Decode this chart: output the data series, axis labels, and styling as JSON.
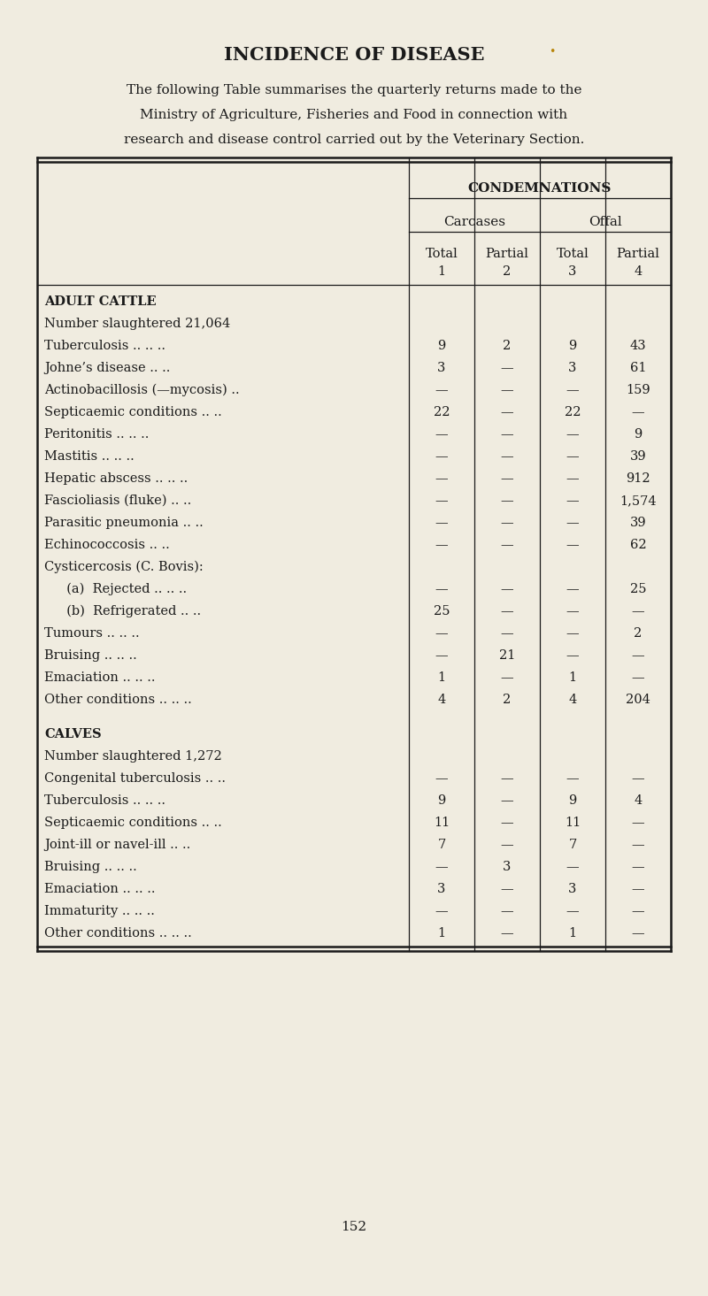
{
  "title": "INCIDENCE OF DISEASE",
  "intro_line1": "The following Table summarises the quarterly returns made to the",
  "intro_line2": "Ministry of Agriculture, Fisheries and Food in connection with",
  "intro_line3": "research and disease control carried out by the Veterinary Section.",
  "bg_color": "#f0ece0",
  "text_color": "#1a1a1a",
  "page_number": "152",
  "col_header_1": "CONDEMNATIONS",
  "col_header_2a": "Carcases",
  "col_header_2b": "Offal",
  "col_header_3a": "Total",
  "col_header_3b": "Partial",
  "col_header_3c": "Total",
  "col_header_3d": "Partial",
  "col_num_1": "1",
  "col_num_2": "2",
  "col_num_3": "3",
  "col_num_4": "4",
  "adult_cattle_header": "ADULT CATTLE",
  "adult_slaughtered": "Number slaughtered 21,064",
  "adult_rows": [
    {
      "label": "Tuberculosis .. .. ..",
      "c1": "9",
      "c2": "2",
      "c3": "9",
      "c4": "43"
    },
    {
      "label": "Johne’s disease .. ..",
      "c1": "3",
      "c2": "—",
      "c3": "3",
      "c4": "61"
    },
    {
      "label": "Actinobacillosis (—mycosis) ..",
      "c1": "—",
      "c2": "—",
      "c3": "—",
      "c4": "159"
    },
    {
      "label": "Septicaemic conditions .. ..",
      "c1": "22",
      "c2": "—",
      "c3": "22",
      "c4": "—"
    },
    {
      "label": "Peritonitis .. .. ..",
      "c1": "—",
      "c2": "—",
      "c3": "—",
      "c4": "9"
    },
    {
      "label": "Mastitis .. .. ..",
      "c1": "—",
      "c2": "—",
      "c3": "—",
      "c4": "39"
    },
    {
      "label": "Hepatic abscess .. .. ..",
      "c1": "—",
      "c2": "—",
      "c3": "—",
      "c4": "912"
    },
    {
      "label": "Fascioliasis (fluke) .. ..",
      "c1": "—",
      "c2": "—",
      "c3": "—",
      "c4": "1,574"
    },
    {
      "label": "Parasitic pneumonia .. ..",
      "c1": "—",
      "c2": "—",
      "c3": "—",
      "c4": "39"
    },
    {
      "label": "Echinococcosis .. ..",
      "c1": "—",
      "c2": "—",
      "c3": "—",
      "c4": "62"
    },
    {
      "label": "Cysticercosis (C. Bovis):",
      "c1": null,
      "c2": null,
      "c3": null,
      "c4": null
    },
    {
      "label": "  (a)  Rejected .. .. ..",
      "c1": "—",
      "c2": "—",
      "c3": "—",
      "c4": "25",
      "indent": true
    },
    {
      "label": "  (b)  Refrigerated .. ..",
      "c1": "25",
      "c2": "—",
      "c3": "—",
      "c4": "—",
      "indent": true
    },
    {
      "label": "Tumours .. .. ..",
      "c1": "—",
      "c2": "—",
      "c3": "—",
      "c4": "2"
    },
    {
      "label": "Bruising .. .. ..",
      "c1": "—",
      "c2": "21",
      "c3": "—",
      "c4": "—"
    },
    {
      "label": "Emaciation .. .. ..",
      "c1": "1",
      "c2": "—",
      "c3": "1",
      "c4": "—"
    },
    {
      "label": "Other conditions .. .. ..",
      "c1": "4",
      "c2": "2",
      "c3": "4",
      "c4": "204"
    }
  ],
  "calves_header": "CALVES",
  "calves_slaughtered": "Number slaughtered 1,272",
  "calves_rows": [
    {
      "label": "Congenital tuberculosis .. ..",
      "c1": "—",
      "c2": "—",
      "c3": "—",
      "c4": "—"
    },
    {
      "label": "Tuberculosis .. .. ..",
      "c1": "9",
      "c2": "—",
      "c3": "9",
      "c4": "4"
    },
    {
      "label": "Septicaemic conditions .. ..",
      "c1": "11",
      "c2": "—",
      "c3": "11",
      "c4": "—"
    },
    {
      "label": "Joint-ill or navel-ill .. ..",
      "c1": "7",
      "c2": "—",
      "c3": "7",
      "c4": "—"
    },
    {
      "label": "Bruising .. .. ..",
      "c1": "—",
      "c2": "3",
      "c3": "—",
      "c4": "—"
    },
    {
      "label": "Emaciation .. .. ..",
      "c1": "3",
      "c2": "—",
      "c3": "3",
      "c4": "—"
    },
    {
      "label": "Immaturity .. .. ..",
      "c1": "—",
      "c2": "—",
      "c3": "—",
      "c4": "—"
    },
    {
      "label": "Other conditions .. .. ..",
      "c1": "1",
      "c2": "—",
      "c3": "1",
      "c4": "—"
    }
  ],
  "dot_color": "#b8860b"
}
